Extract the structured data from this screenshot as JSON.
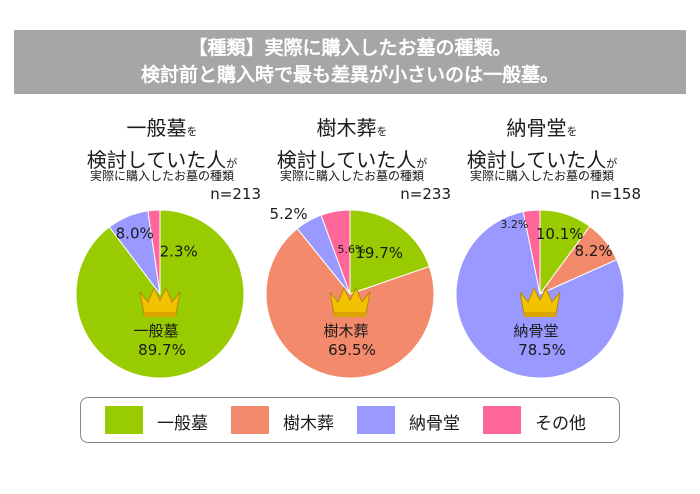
{
  "header": {
    "line1": "【種類】実際に購入したお墓の種類。",
    "line2": "検討前と購入時で最も差異が小さいのは一般墓。"
  },
  "colors": {
    "general": "#99cc00",
    "tree": "#f28a6b",
    "charnel": "#9999ff",
    "other": "#ff6699"
  },
  "chart_data": [
    {
      "type": "pie",
      "title_main": "一般墓",
      "title_particle_1": "を",
      "title_line2": "検討していた人",
      "title_particle_2": "が",
      "subtitle": "実際に購入したお墓の種類",
      "n": "n=213",
      "categories": [
        "一般墓",
        "樹木葬",
        "納骨堂",
        "その他"
      ],
      "values": [
        89.7,
        0,
        8.0,
        2.3
      ],
      "labels": [
        "89.7%",
        "",
        "8.0%",
        "2.3%"
      ],
      "main_label": "一般墓"
    },
    {
      "type": "pie",
      "title_main": "樹木葬",
      "title_particle_1": "を",
      "title_line2": "検討していた人",
      "title_particle_2": "が",
      "subtitle": "実際に購入したお墓の種類",
      "n": "n=233",
      "categories": [
        "一般墓",
        "樹木葬",
        "納骨堂",
        "その他"
      ],
      "values": [
        19.7,
        69.5,
        5.2,
        5.6
      ],
      "labels": [
        "19.7%",
        "69.5%",
        "5.2%",
        "5.6%"
      ],
      "main_label": "樹木葬"
    },
    {
      "type": "pie",
      "title_main": "納骨堂",
      "title_particle_1": "を",
      "title_line2": "検討していた人",
      "title_particle_2": "が",
      "subtitle": "実際に購入したお墓の種類",
      "n": "n=158",
      "categories": [
        "一般墓",
        "樹木葬",
        "納骨堂",
        "その他"
      ],
      "values": [
        10.1,
        8.2,
        78.5,
        3.2
      ],
      "labels": [
        "10.1%",
        "8.2%",
        "78.5%",
        "3.2%"
      ],
      "main_label": "納骨堂"
    }
  ],
  "legend": [
    {
      "label": "一般墓",
      "color": "#99cc00"
    },
    {
      "label": "樹木葬",
      "color": "#f28a6b"
    },
    {
      "label": "納骨堂",
      "color": "#9999ff"
    },
    {
      "label": "その他",
      "color": "#ff6699"
    }
  ]
}
